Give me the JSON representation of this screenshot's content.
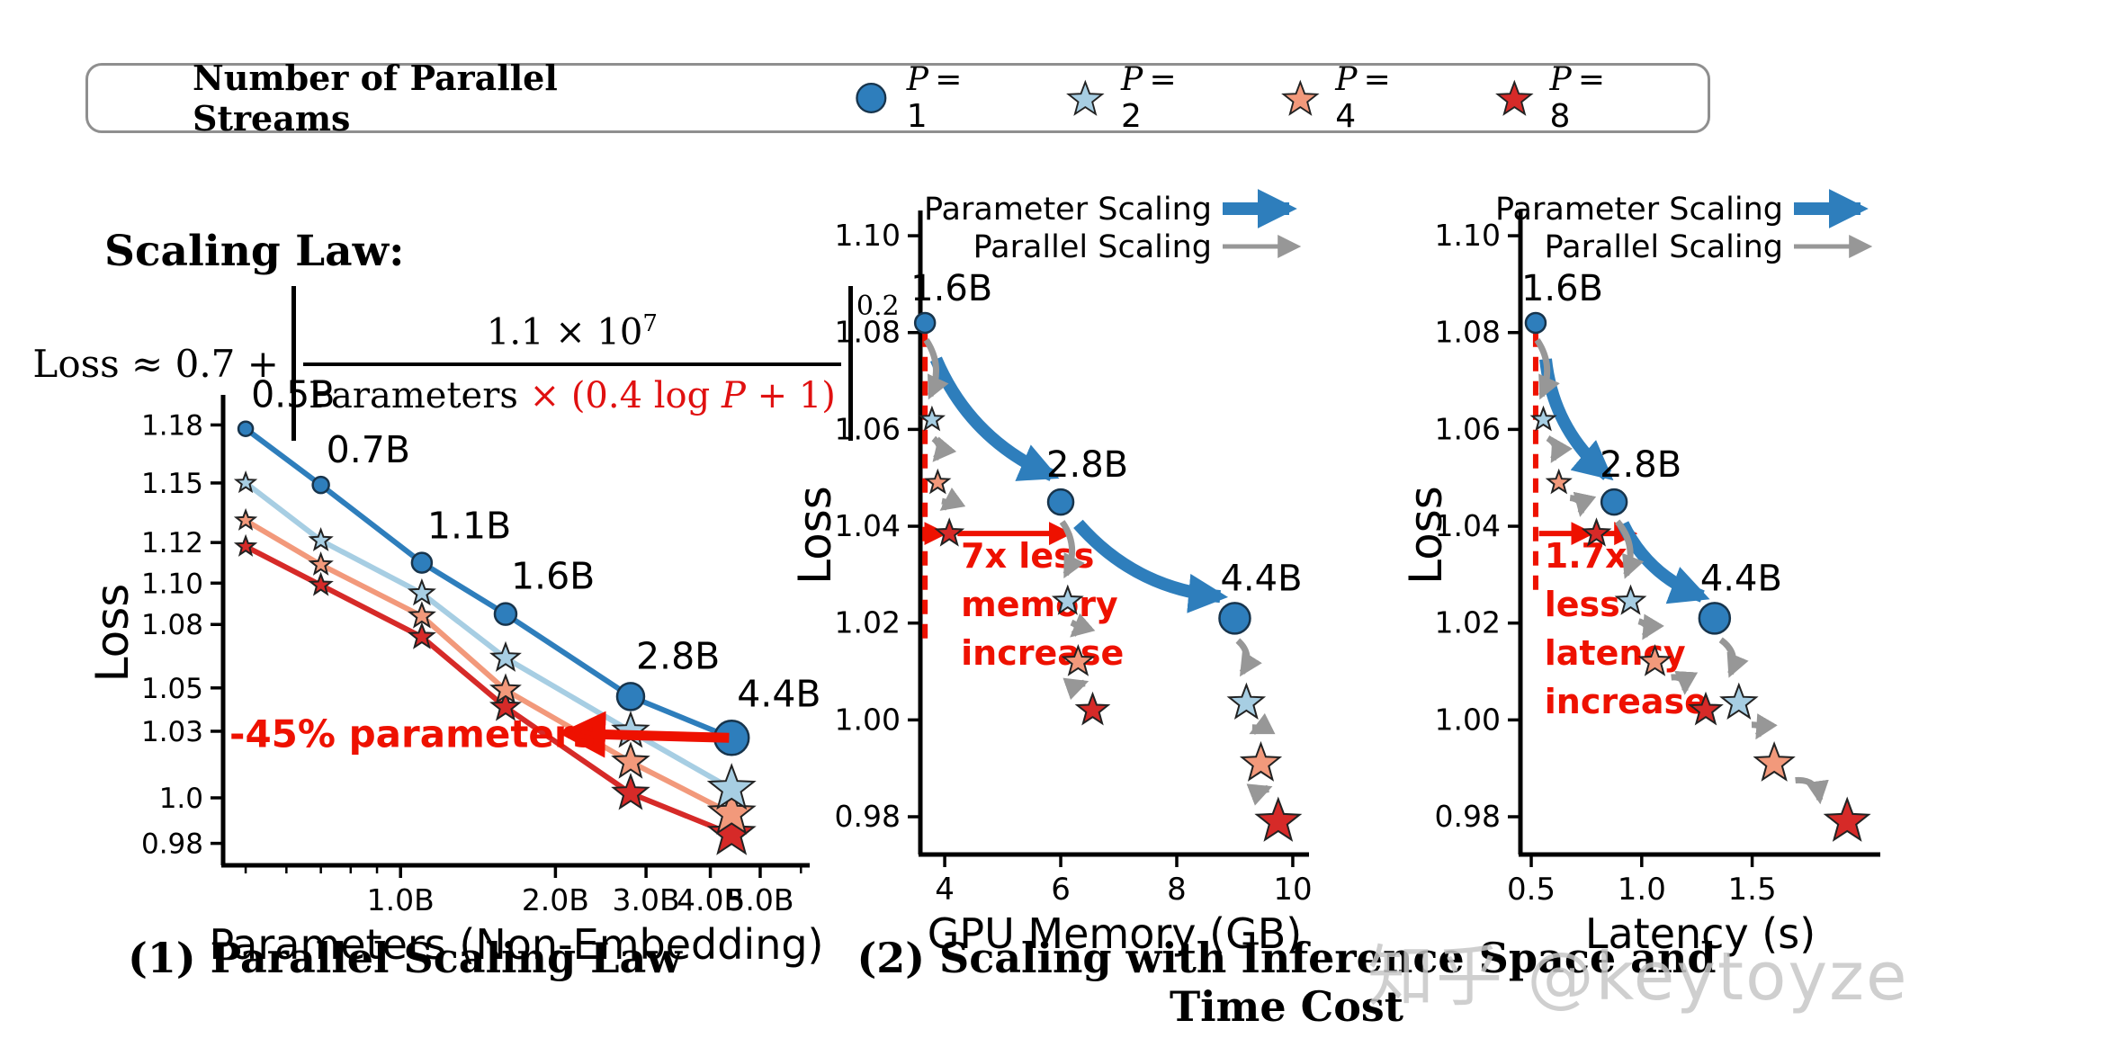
{
  "page": {
    "watermark": "知乎 @keytoyze",
    "background": "#ffffff"
  },
  "legend": {
    "title": "Number of Parallel Streams",
    "items": [
      {
        "label": "P = 1",
        "marker": "circle",
        "color": "#2e7ebc"
      },
      {
        "label": "P = 2",
        "marker": "star",
        "color": "#a7cee3"
      },
      {
        "label": "P = 4",
        "marker": "star",
        "color": "#f2997b"
      },
      {
        "label": "P = 8",
        "marker": "star",
        "color": "#d62a28"
      }
    ]
  },
  "scaling_law": {
    "heading": "Scaling Law:",
    "lhs": "Loss ≈ 0.7 +",
    "numerator": "1.1 × 10",
    "numerator_exp": "7",
    "denominator_black": "Parameters",
    "denominator_red_pre": "× (0.4 log ",
    "denominator_red_var": "P",
    "denominator_red_post": " + 1)",
    "outer_exp": "0.2",
    "red_color": "#e01010"
  },
  "captions": {
    "left": "(1) Parallel Scaling Law",
    "right": "(2) Scaling with Inference Space and Time Cost"
  },
  "colors": {
    "p1_blue": "#2e7ebc",
    "p2_lightblue": "#a7cee3",
    "p4_salmon": "#f2997b",
    "p8_red": "#d62a28",
    "gray_arrow": "#979797",
    "annotation_red": "#ee1100",
    "axis_black": "#000000"
  },
  "chart_data": [
    {
      "id": "parallel-scaling-law",
      "type": "line",
      "title": "(1) Parallel Scaling Law",
      "xlabel": "Parameters (Non-Embedding)",
      "ylabel": "Loss",
      "x_scale": "log",
      "y_scale": "log",
      "xlim": [
        0.452,
        6.24
      ],
      "ylim": [
        0.9705,
        1.193
      ],
      "x_ticks": [
        {
          "v": 1.0,
          "t": "1.0B"
        },
        {
          "v": 2.0,
          "t": "2.0B"
        },
        {
          "v": 3.0,
          "t": "3.0B"
        },
        {
          "v": 4.0,
          "t": "4.0B"
        },
        {
          "v": 5.0,
          "t": "5.0B"
        }
      ],
      "x_minor_ticks": [
        0.5,
        0.6,
        0.7,
        0.8,
        0.9,
        6.0
      ],
      "y_ticks": [
        {
          "v": 1.18,
          "t": "1.18"
        },
        {
          "v": 1.15,
          "t": "1.15"
        },
        {
          "v": 1.12,
          "t": "1.12"
        },
        {
          "v": 1.1,
          "t": "1.10"
        },
        {
          "v": 1.08,
          "t": "1.08"
        },
        {
          "v": 1.05,
          "t": "1.05"
        },
        {
          "v": 1.03,
          "t": "1.03"
        },
        {
          "v": 1.0,
          "t": "1.0"
        },
        {
          "v": 0.98,
          "t": "0.98"
        }
      ],
      "x_values": [
        0.5,
        0.7,
        1.1,
        1.6,
        2.8,
        4.4
      ],
      "point_labels": [
        "0.5B",
        "0.7B",
        "1.1B",
        "1.6B",
        "2.8B",
        "4.4B"
      ],
      "series": [
        {
          "name": "P = 1",
          "marker": "circle",
          "color": "#2e7ebc",
          "values": [
            1.178,
            1.149,
            1.11,
            1.085,
            1.046,
            1.027
          ]
        },
        {
          "name": "P = 2",
          "marker": "star",
          "color": "#a7cee3",
          "values": [
            1.15,
            1.121,
            1.095,
            1.064,
            1.03,
            1.004
          ]
        },
        {
          "name": "P = 4",
          "marker": "star",
          "color": "#f2997b",
          "values": [
            1.131,
            1.109,
            1.084,
            1.049,
            1.016,
            0.993
          ]
        },
        {
          "name": "P = 8",
          "marker": "star",
          "color": "#d62a28",
          "values": [
            1.118,
            1.099,
            1.074,
            1.041,
            1.002,
            0.984
          ]
        }
      ],
      "annotation": {
        "text": "-45% parameters",
        "arrow_from": [
          4.35,
          1.027
        ],
        "arrow_to": [
          2.0,
          1.029
        ],
        "text_pos": [
          0.465,
          1.0285
        ]
      }
    },
    {
      "id": "memory-scaling",
      "type": "scatter-groups",
      "title": "(2) Scaling with Inference Space and Time Cost",
      "xlabel": "GPU Memory (GB)",
      "ylabel": "Loss",
      "x_scale": "linear",
      "y_scale": "linear",
      "xlim": [
        3.58,
        10.28
      ],
      "ylim": [
        0.9722,
        1.1041
      ],
      "x_ticks": [
        {
          "v": 4,
          "t": "4"
        },
        {
          "v": 6,
          "t": "6"
        },
        {
          "v": 8,
          "t": "8"
        },
        {
          "v": 10,
          "t": "10"
        }
      ],
      "y_ticks": [
        {
          "v": 1.1,
          "t": "1.10"
        },
        {
          "v": 1.08,
          "t": "1.08"
        },
        {
          "v": 1.06,
          "t": "1.06"
        },
        {
          "v": 1.04,
          "t": "1.04"
        },
        {
          "v": 1.02,
          "t": "1.02"
        },
        {
          "v": 1.0,
          "t": "1.00"
        },
        {
          "v": 0.98,
          "t": "0.98"
        }
      ],
      "inner_legend": [
        {
          "label": "Parameter Scaling",
          "style": "thick-blue"
        },
        {
          "label": "Parallel Scaling",
          "style": "thin-gray"
        }
      ],
      "groups": [
        {
          "label": "1.6B",
          "points": [
            {
              "p": "P = 1",
              "x": 3.66,
              "y": 1.082
            },
            {
              "p": "P = 2",
              "x": 3.78,
              "y": 1.062
            },
            {
              "p": "P = 4",
              "x": 3.88,
              "y": 1.049
            },
            {
              "p": "P = 8",
              "x": 4.08,
              "y": 1.0385
            }
          ]
        },
        {
          "label": "2.8B",
          "points": [
            {
              "p": "P = 1",
              "x": 6.0,
              "y": 1.045
            },
            {
              "p": "P = 2",
              "x": 6.12,
              "y": 1.0245
            },
            {
              "p": "P = 4",
              "x": 6.3,
              "y": 1.012
            },
            {
              "p": "P = 8",
              "x": 6.55,
              "y": 1.002
            }
          ]
        },
        {
          "label": "4.4B",
          "points": [
            {
              "p": "P = 1",
              "x": 9.0,
              "y": 1.021
            },
            {
              "p": "P = 2",
              "x": 9.2,
              "y": 1.0035
            },
            {
              "p": "P = 4",
              "x": 9.45,
              "y": 0.991
            },
            {
              "p": "P = 8",
              "x": 9.75,
              "y": 0.979
            }
          ]
        }
      ],
      "param_arrows": [
        {
          "from": [
            3.85,
            1.0745
          ],
          "to": [
            5.85,
            1.0505
          ]
        },
        {
          "from": [
            6.3,
            1.0405
          ],
          "to": [
            8.75,
            1.0255
          ]
        }
      ],
      "annotation": {
        "dashed_line": {
          "x": 3.66,
          "y1": 1.08,
          "y2": 1.016
        },
        "arrows": [
          {
            "from": [
              3.69,
              1.0385
            ],
            "to": [
              3.97,
              1.0385
            ]
          },
          {
            "from": [
              4.22,
              1.0385
            ],
            "to": [
              6.12,
              1.0385
            ]
          }
        ],
        "text_lines": [
          "7x less",
          "memory",
          "increase"
        ],
        "text_pos": [
          4.28,
          1.0315
        ]
      }
    },
    {
      "id": "latency-scaling",
      "type": "scatter-groups",
      "title": "(2) Scaling with Inference Space and Time Cost",
      "xlabel": "Latency (s)",
      "ylabel": "Loss",
      "x_scale": "linear",
      "y_scale": "linear",
      "xlim": [
        0.451,
        2.08
      ],
      "ylim": [
        0.9722,
        1.1041
      ],
      "x_ticks": [
        {
          "v": 0.5,
          "t": "0.5"
        },
        {
          "v": 1.0,
          "t": "1.0"
        },
        {
          "v": 1.5,
          "t": "1.5"
        }
      ],
      "y_ticks": [
        {
          "v": 1.1,
          "t": "1.10"
        },
        {
          "v": 1.08,
          "t": "1.08"
        },
        {
          "v": 1.06,
          "t": "1.06"
        },
        {
          "v": 1.04,
          "t": "1.04"
        },
        {
          "v": 1.02,
          "t": "1.02"
        },
        {
          "v": 1.0,
          "t": "1.00"
        },
        {
          "v": 0.98,
          "t": "0.98"
        }
      ],
      "inner_legend": [
        {
          "label": "Parameter Scaling",
          "style": "thick-blue"
        },
        {
          "label": "Parallel Scaling",
          "style": "thin-gray"
        }
      ],
      "groups": [
        {
          "label": "1.6B",
          "points": [
            {
              "p": "P = 1",
              "x": 0.52,
              "y": 1.082
            },
            {
              "p": "P = 2",
              "x": 0.555,
              "y": 1.062
            },
            {
              "p": "P = 4",
              "x": 0.625,
              "y": 1.049
            },
            {
              "p": "P = 8",
              "x": 0.795,
              "y": 1.0385
            }
          ]
        },
        {
          "label": "2.8B",
          "points": [
            {
              "p": "P = 1",
              "x": 0.875,
              "y": 1.045
            },
            {
              "p": "P = 2",
              "x": 0.95,
              "y": 1.0245
            },
            {
              "p": "P = 4",
              "x": 1.06,
              "y": 1.012
            },
            {
              "p": "P = 8",
              "x": 1.29,
              "y": 1.002
            }
          ]
        },
        {
          "label": "4.4B",
          "points": [
            {
              "p": "P = 1",
              "x": 1.33,
              "y": 1.021
            },
            {
              "p": "P = 2",
              "x": 1.44,
              "y": 1.0035
            },
            {
              "p": "P = 4",
              "x": 1.6,
              "y": 0.991
            },
            {
              "p": "P = 8",
              "x": 1.93,
              "y": 0.979
            }
          ]
        }
      ],
      "param_arrows": [
        {
          "from": [
            0.565,
            1.0745
          ],
          "to": [
            0.845,
            1.0505
          ]
        },
        {
          "from": [
            0.915,
            1.0405
          ],
          "to": [
            1.275,
            1.0255
          ]
        }
      ],
      "annotation": {
        "dashed_line": {
          "x": 0.52,
          "y1": 1.08,
          "y2": 1.0265
        },
        "arrows": [
          {
            "from": [
              0.535,
              1.0385
            ],
            "to": [
              0.765,
              1.0385
            ]
          },
          {
            "from": [
              0.825,
              1.0385
            ],
            "to": [
              0.96,
              1.0385
            ]
          }
        ],
        "text_lines": [
          "1.7x",
          "less",
          "latency",
          "increase"
        ],
        "text_pos": [
          0.56,
          1.0315
        ]
      }
    }
  ]
}
